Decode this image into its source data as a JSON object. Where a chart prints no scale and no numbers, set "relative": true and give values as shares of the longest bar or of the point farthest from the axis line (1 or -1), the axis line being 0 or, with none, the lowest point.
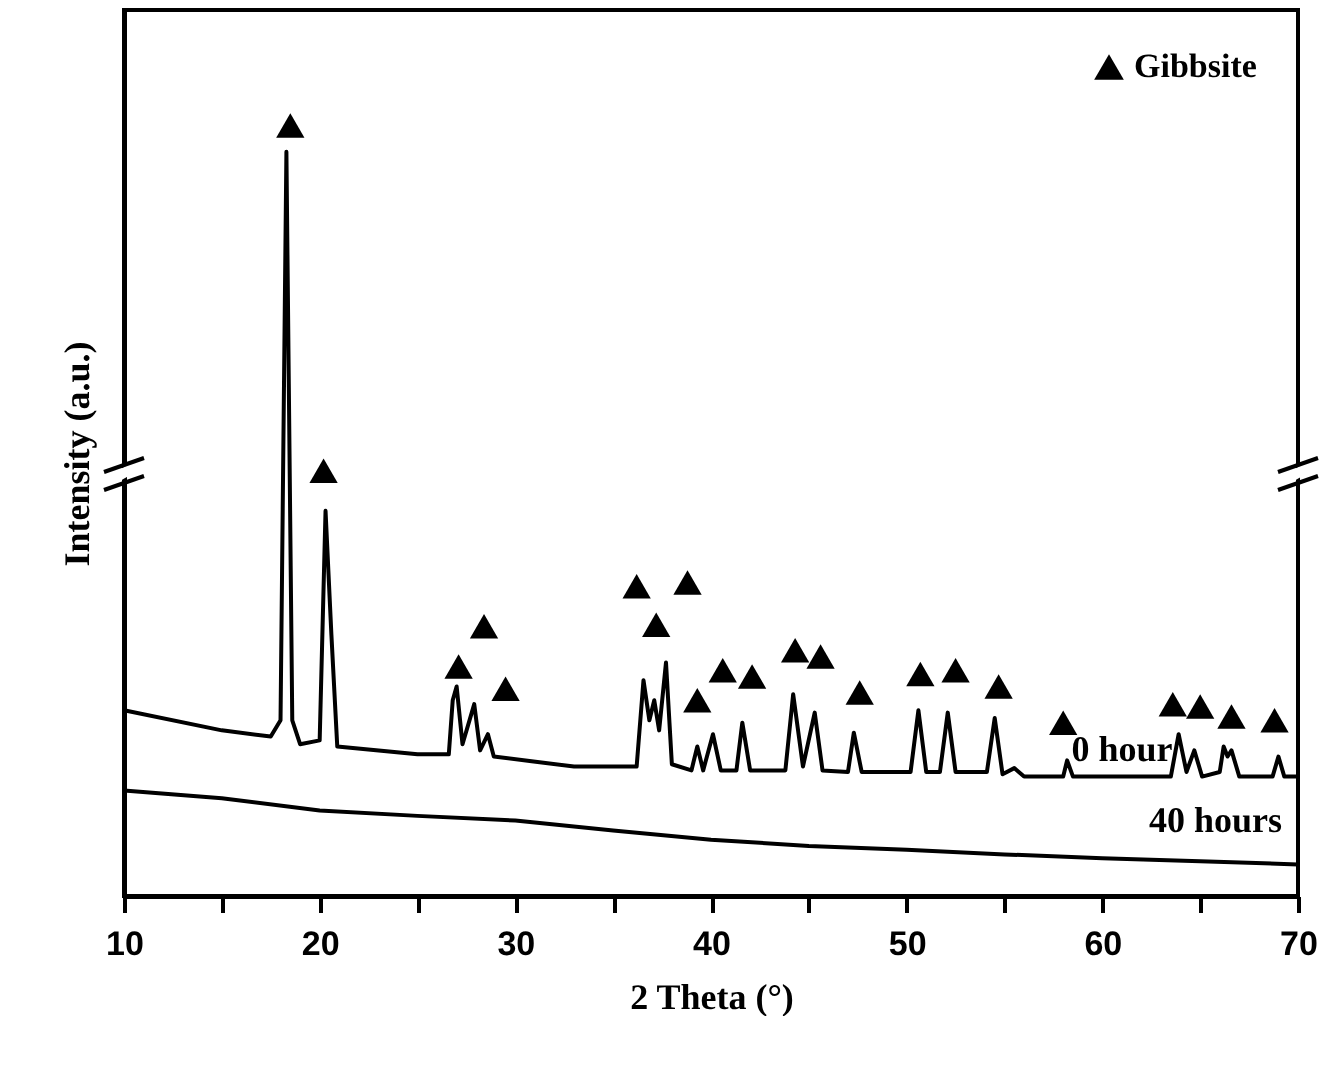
{
  "chart_data": {
    "type": "line",
    "relative": true,
    "xlabel": "2 Theta (°)",
    "ylabel": "Intensity (a.u.)",
    "xlim": [
      10,
      70
    ],
    "xticks": [
      10,
      {
        "value": 15,
        "label": null
      },
      20,
      {
        "value": 25,
        "label": null
      },
      30,
      {
        "value": 35,
        "label": null
      },
      40,
      {
        "value": 45,
        "label": null
      },
      50,
      {
        "value": 55,
        "label": null
      },
      60,
      {
        "value": 65,
        "label": null
      },
      70
    ],
    "grid": false,
    "legend": "top right",
    "line_style": "solid",
    "series": [
      {
        "name": "0 hour",
        "color": "#000000",
        "marker": "none",
        "x": [
          10,
          15,
          17.5,
          18.0,
          18.3,
          18.6,
          19.0,
          20.0,
          20.3,
          20.6,
          20.9,
          25,
          26.6,
          26.8,
          27.0,
          27.3,
          27.9,
          28.2,
          28.6,
          28.9,
          33,
          36.2,
          36.55,
          36.85,
          37.1,
          37.35,
          37.7,
          38.0,
          39.0,
          39.3,
          39.6,
          40.1,
          40.5,
          41.3,
          41.6,
          42.0,
          43.8,
          44.2,
          44.7,
          45.3,
          45.7,
          47.0,
          47.3,
          47.7,
          50.2,
          50.6,
          51.0,
          51.7,
          52.1,
          52.5,
          54.1,
          54.5,
          54.9,
          55.5,
          56,
          58.0,
          58.2,
          58.5,
          63.5,
          63.9,
          64.3,
          64.7,
          65.1,
          66.0,
          66.2,
          66.4,
          66.6,
          67,
          68.7,
          69.0,
          69.3,
          70
        ],
        "values": [
          0.241,
          0.215,
          0.207,
          0.228,
          0.966,
          0.228,
          0.197,
          0.202,
          0.5,
          0.339,
          0.194,
          0.184,
          0.184,
          0.254,
          0.272,
          0.197,
          0.249,
          0.189,
          0.21,
          0.181,
          0.168,
          0.168,
          0.28,
          0.228,
          0.254,
          0.215,
          0.303,
          0.171,
          0.163,
          0.194,
          0.163,
          0.21,
          0.163,
          0.163,
          0.225,
          0.163,
          0.163,
          0.262,
          0.168,
          0.238,
          0.163,
          0.161,
          0.212,
          0.161,
          0.161,
          0.241,
          0.161,
          0.161,
          0.238,
          0.161,
          0.161,
          0.231,
          0.158,
          0.166,
          0.155,
          0.155,
          0.176,
          0.155,
          0.155,
          0.21,
          0.161,
          0.189,
          0.155,
          0.161,
          0.194,
          0.181,
          0.189,
          0.155,
          0.155,
          0.181,
          0.155,
          0.155
        ]
      },
      {
        "name": "40 hours",
        "color": "#000000",
        "marker": "none",
        "x": [
          10,
          15,
          20,
          25,
          30,
          35,
          40,
          45,
          50,
          55,
          60,
          65,
          70
        ],
        "values": [
          0.137,
          0.127,
          0.111,
          0.104,
          0.098,
          0.085,
          0.073,
          0.065,
          0.06,
          0.054,
          0.049,
          0.045,
          0.041
        ]
      },
      {
        "name": "Gibbsite",
        "type": "scatter",
        "color": "#000000",
        "marker": "triangle",
        "x": [
          18.5,
          20.2,
          28.4,
          27.1,
          29.5,
          36.2,
          38.8,
          37.2,
          39.3,
          40.6,
          42.1,
          44.3,
          45.6,
          47.6,
          50.7,
          52.5,
          54.7,
          58.0,
          63.6,
          65.0,
          66.6,
          68.8
        ],
        "values": [
          1.0,
          0.552,
          0.35,
          0.298,
          0.269,
          0.402,
          0.407,
          0.352,
          0.254,
          0.293,
          0.285,
          0.319,
          0.311,
          0.264,
          0.288,
          0.293,
          0.272,
          0.225,
          0.249,
          0.246,
          0.233,
          0.228
        ]
      }
    ]
  }
}
